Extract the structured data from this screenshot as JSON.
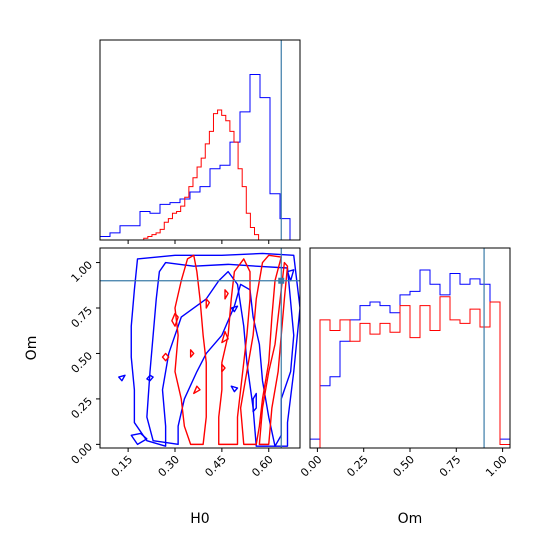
{
  "chart_data": [
    {
      "type": "histogram",
      "panel": "H0 marginal",
      "x_range": [
        0.06,
        0.7
      ],
      "truth_x": 0.64,
      "series": [
        {
          "color": "#0000ff",
          "bin_range": [
            0.06,
            0.7
          ],
          "bins": 20,
          "values": [
            0.02,
            0.04,
            0.08,
            0.08,
            0.16,
            0.15,
            0.2,
            0.21,
            0.23,
            0.27,
            0.3,
            0.4,
            0.42,
            0.55,
            0.72,
            0.93,
            0.8,
            0.26,
            0.12,
            0.0
          ]
        },
        {
          "color": "#ff0000",
          "bin_range": [
            0.2,
            0.62
          ],
          "bins": 32,
          "values": [
            0.01,
            0.02,
            0.03,
            0.04,
            0.06,
            0.1,
            0.12,
            0.15,
            0.16,
            0.19,
            0.24,
            0.3,
            0.35,
            0.41,
            0.46,
            0.54,
            0.61,
            0.71,
            0.73,
            0.7,
            0.67,
            0.61,
            0.55,
            0.4,
            0.3,
            0.15,
            0.07,
            0.03,
            0.0,
            0.0,
            0.0,
            0.0
          ]
        }
      ]
    },
    {
      "type": "contour",
      "panel": "H0 vs Om",
      "x_range": [
        0.06,
        0.7
      ],
      "y_range": [
        -0.02,
        1.08
      ],
      "x_ticks": [
        "0.15",
        "0.30",
        "0.45",
        "0.60"
      ],
      "y_ticks": [
        "0.00",
        "0.25",
        "0.50",
        "0.75",
        "1.00"
      ],
      "xlabel": "H0",
      "ylabel": "Om",
      "truth": [
        0.64,
        0.9
      ],
      "series": [
        {
          "color": "#0000ff",
          "contours": [
            [
              [
                0.21,
                0.02
              ],
              [
                0.17,
                0.12
              ],
              [
                0.17,
                0.3
              ],
              [
                0.16,
                0.48
              ],
              [
                0.16,
                0.65
              ],
              [
                0.17,
                0.85
              ],
              [
                0.18,
                1.02
              ],
              [
                0.3,
                1.04
              ],
              [
                0.45,
                1.04
              ],
              [
                0.58,
                1.05
              ],
              [
                0.68,
                1.04
              ],
              [
                0.7,
                0.75
              ],
              [
                0.68,
                0.4
              ],
              [
                0.66,
                0.12
              ],
              [
                0.66,
                -0.01
              ],
              [
                0.56,
                -0.01
              ],
              [
                0.55,
                0.2
              ],
              [
                0.53,
                0.45
              ],
              [
                0.52,
                0.65
              ],
              [
                0.5,
                0.88
              ],
              [
                0.47,
                0.95
              ],
              [
                0.44,
                0.9
              ],
              [
                0.4,
                0.8
              ],
              [
                0.32,
                0.7
              ],
              [
                0.28,
                0.5
              ],
              [
                0.26,
                0.3
              ],
              [
                0.27,
                0.1
              ],
              [
                0.27,
                -0.01
              ]
            ],
            [
              [
                0.23,
                0.02
              ],
              [
                0.21,
                0.15
              ],
              [
                0.22,
                0.4
              ],
              [
                0.23,
                0.6
              ],
              [
                0.24,
                0.8
              ],
              [
                0.25,
                0.95
              ],
              [
                0.27,
                1.0
              ],
              [
                0.36,
                0.98
              ],
              [
                0.47,
                0.99
              ],
              [
                0.56,
                0.98
              ],
              [
                0.66,
                0.97
              ],
              [
                0.68,
                0.6
              ],
              [
                0.67,
                0.4
              ],
              [
                0.64,
                0.25
              ],
              [
                0.64,
                0.05
              ],
              [
                0.62,
                -0.01
              ],
              [
                0.6,
                0.15
              ],
              [
                0.58,
                0.35
              ],
              [
                0.57,
                0.55
              ],
              [
                0.55,
                0.7
              ],
              [
                0.54,
                0.85
              ],
              [
                0.51,
                0.88
              ],
              [
                0.49,
                0.76
              ],
              [
                0.45,
                0.6
              ],
              [
                0.4,
                0.5
              ],
              [
                0.37,
                0.4
              ],
              [
                0.33,
                0.25
              ],
              [
                0.31,
                0.1
              ],
              [
                0.31,
                0.0
              ]
            ],
            [
              [
                0.18,
                0.0
              ],
              [
                0.16,
                0.05
              ],
              [
                0.19,
                0.06
              ],
              [
                0.21,
                0.03
              ]
            ],
            [
              [
                0.12,
                0.37
              ],
              [
                0.13,
                0.35
              ],
              [
                0.14,
                0.38
              ]
            ],
            [
              [
                0.21,
                0.36
              ],
              [
                0.22,
                0.35
              ],
              [
                0.23,
                0.37
              ],
              [
                0.22,
                0.38
              ]
            ],
            [
              [
                0.48,
                0.32
              ],
              [
                0.49,
                0.29
              ],
              [
                0.5,
                0.31
              ]
            ],
            [
              [
                0.48,
                0.75
              ],
              [
                0.49,
                0.73
              ],
              [
                0.5,
                0.76
              ]
            ],
            [
              [
                0.55,
                0.25
              ],
              [
                0.56,
                0.28
              ],
              [
                0.56,
                0.2
              ],
              [
                0.55,
                0.18
              ]
            ],
            [
              [
                0.66,
                0.95
              ],
              [
                0.67,
                0.9
              ],
              [
                0.68,
                0.96
              ]
            ]
          ]
        },
        {
          "color": "#ff0000",
          "contours": [
            [
              [
                0.35,
                0.0
              ],
              [
                0.33,
                0.1
              ],
              [
                0.32,
                0.25
              ],
              [
                0.3,
                0.4
              ],
              [
                0.31,
                0.6
              ],
              [
                0.3,
                0.75
              ],
              [
                0.32,
                0.9
              ],
              [
                0.34,
                1.02
              ],
              [
                0.36,
                1.04
              ],
              [
                0.37,
                0.95
              ],
              [
                0.38,
                0.8
              ],
              [
                0.39,
                0.6
              ],
              [
                0.4,
                0.45
              ],
              [
                0.4,
                0.3
              ],
              [
                0.4,
                0.15
              ],
              [
                0.39,
                0.0
              ]
            ],
            [
              [
                0.44,
                0.0
              ],
              [
                0.44,
                0.15
              ],
              [
                0.45,
                0.3
              ],
              [
                0.45,
                0.45
              ],
              [
                0.47,
                0.6
              ],
              [
                0.48,
                0.8
              ],
              [
                0.49,
                0.95
              ],
              [
                0.52,
                1.02
              ],
              [
                0.54,
                0.95
              ],
              [
                0.54,
                0.8
              ],
              [
                0.53,
                0.6
              ],
              [
                0.52,
                0.45
              ],
              [
                0.51,
                0.3
              ],
              [
                0.5,
                0.15
              ],
              [
                0.5,
                0.0
              ]
            ],
            [
              [
                0.52,
                0.0
              ],
              [
                0.51,
                0.2
              ],
              [
                0.53,
                0.4
              ],
              [
                0.55,
                0.6
              ],
              [
                0.56,
                0.8
              ],
              [
                0.58,
                1.0
              ],
              [
                0.6,
                1.04
              ],
              [
                0.64,
                1.03
              ],
              [
                0.62,
                0.9
              ],
              [
                0.61,
                0.7
              ],
              [
                0.6,
                0.45
              ],
              [
                0.58,
                0.25
              ],
              [
                0.57,
                0.1
              ],
              [
                0.56,
                0.0
              ]
            ],
            [
              [
                0.57,
                0.0
              ],
              [
                0.58,
                0.2
              ],
              [
                0.6,
                0.4
              ],
              [
                0.62,
                0.55
              ],
              [
                0.63,
                0.7
              ],
              [
                0.64,
                0.85
              ],
              [
                0.65,
                1.0
              ],
              [
                0.66,
                0.98
              ],
              [
                0.65,
                0.8
              ],
              [
                0.64,
                0.6
              ],
              [
                0.63,
                0.4
              ],
              [
                0.61,
                0.2
              ],
              [
                0.6,
                0.0
              ]
            ],
            [
              [
                0.29,
                0.68
              ],
              [
                0.3,
                0.65
              ],
              [
                0.31,
                0.7
              ],
              [
                0.3,
                0.72
              ]
            ],
            [
              [
                0.26,
                0.48
              ],
              [
                0.27,
                0.46
              ],
              [
                0.28,
                0.48
              ],
              [
                0.27,
                0.5
              ]
            ],
            [
              [
                0.36,
                0.28
              ],
              [
                0.38,
                0.3
              ],
              [
                0.37,
                0.32
              ]
            ],
            [
              [
                0.35,
                0.48
              ],
              [
                0.36,
                0.5
              ],
              [
                0.35,
                0.52
              ]
            ],
            [
              [
                0.4,
                0.75
              ],
              [
                0.41,
                0.78
              ],
              [
                0.4,
                0.8
              ]
            ],
            [
              [
                0.45,
                0.4
              ],
              [
                0.46,
                0.42
              ],
              [
                0.45,
                0.44
              ]
            ],
            [
              [
                0.45,
                0.56
              ],
              [
                0.47,
                0.58
              ],
              [
                0.46,
                0.62
              ]
            ],
            [
              [
                0.46,
                0.8
              ],
              [
                0.47,
                0.83
              ],
              [
                0.46,
                0.85
              ]
            ]
          ]
        }
      ]
    },
    {
      "type": "histogram",
      "panel": "Om marginal",
      "x_range": [
        -0.04,
        1.04
      ],
      "x_ticks": [
        "0.00",
        "0.25",
        "0.50",
        "0.75",
        "1.00"
      ],
      "xlabel": "Om",
      "truth_x": 0.9,
      "series": [
        {
          "color": "#0000ff",
          "bin_range": [
            -0.04,
            1.04
          ],
          "bins": 20,
          "values": [
            0.05,
            0.35,
            0.4,
            0.6,
            0.72,
            0.8,
            0.82,
            0.8,
            0.76,
            0.86,
            0.88,
            1.0,
            0.92,
            0.86,
            0.98,
            0.92,
            0.95,
            0.92,
            0.82,
            0.05
          ]
        },
        {
          "color": "#ff0000",
          "bin_range": [
            -0.04,
            1.04
          ],
          "bins": 20,
          "values": [
            0.0,
            0.72,
            0.66,
            0.72,
            0.6,
            0.7,
            0.64,
            0.7,
            0.65,
            0.8,
            0.62,
            0.8,
            0.66,
            0.85,
            0.72,
            0.7,
            0.78,
            0.68,
            0.82,
            0.02
          ]
        }
      ]
    }
  ]
}
